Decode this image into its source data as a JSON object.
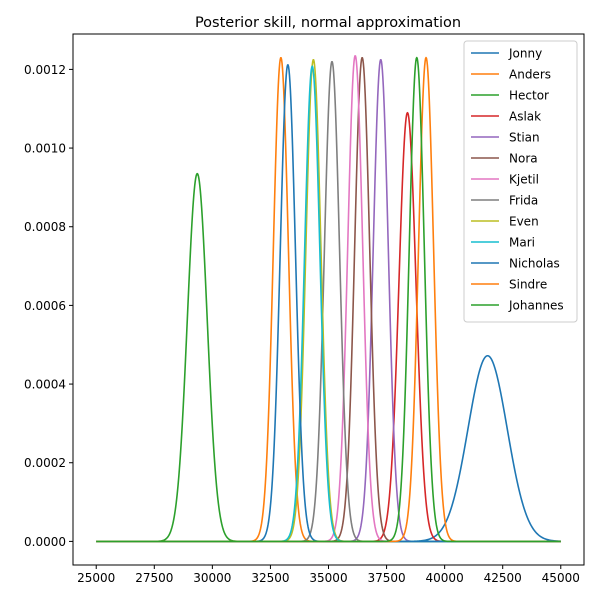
{
  "chart_data": {
    "type": "line",
    "title": "Posterior skill, normal approximation",
    "xlabel": "",
    "ylabel": "",
    "xlim": [
      24000,
      46000
    ],
    "ylim": [
      -6e-05,
      0.00129
    ],
    "x_ticks": [
      25000,
      27500,
      30000,
      32500,
      35000,
      37500,
      40000,
      42500,
      45000
    ],
    "x_tick_labels": [
      "25000",
      "27500",
      "30000",
      "32500",
      "35000",
      "37500",
      "40000",
      "42500",
      "45000"
    ],
    "y_ticks": [
      0,
      0.0002,
      0.0004,
      0.0006,
      0.0008,
      0.001,
      0.0012
    ],
    "y_tick_labels": [
      "0.0000",
      "0.0002",
      "0.0004",
      "0.0006",
      "0.0008",
      "0.0010",
      "0.0012"
    ],
    "x_range": [
      25000,
      45000
    ],
    "legend_position": "top-right",
    "grid": false,
    "series": [
      {
        "name": "Jonny",
        "color": "#1f77b4",
        "mean": 41850,
        "peak": 0.000472
      },
      {
        "name": "Anders",
        "color": "#ff7f0e",
        "mean": 32950,
        "peak": 0.00123
      },
      {
        "name": "Hector",
        "color": "#2ca02c",
        "mean": 29350,
        "peak": 0.000935
      },
      {
        "name": "Aslak",
        "color": "#d62728",
        "mean": 38400,
        "peak": 0.00109
      },
      {
        "name": "Stian",
        "color": "#9467bd",
        "mean": 37250,
        "peak": 0.001225
      },
      {
        "name": "Nora",
        "color": "#8c564b",
        "mean": 36450,
        "peak": 0.00123
      },
      {
        "name": "Kjetil",
        "color": "#e377c2",
        "mean": 36150,
        "peak": 0.001235
      },
      {
        "name": "Frida",
        "color": "#7f7f7f",
        "mean": 35150,
        "peak": 0.00122
      },
      {
        "name": "Even",
        "color": "#bcbd22",
        "mean": 34350,
        "peak": 0.001225
      },
      {
        "name": "Mari",
        "color": "#17becf",
        "mean": 34300,
        "peak": 0.001208
      },
      {
        "name": "Nicholas",
        "color": "#1f77b4",
        "mean": 33250,
        "peak": 0.001212
      },
      {
        "name": "Sindre",
        "color": "#ff7f0e",
        "mean": 39200,
        "peak": 0.00123
      },
      {
        "name": "Johannes",
        "color": "#2ca02c",
        "mean": 38800,
        "peak": 0.00123
      }
    ]
  }
}
